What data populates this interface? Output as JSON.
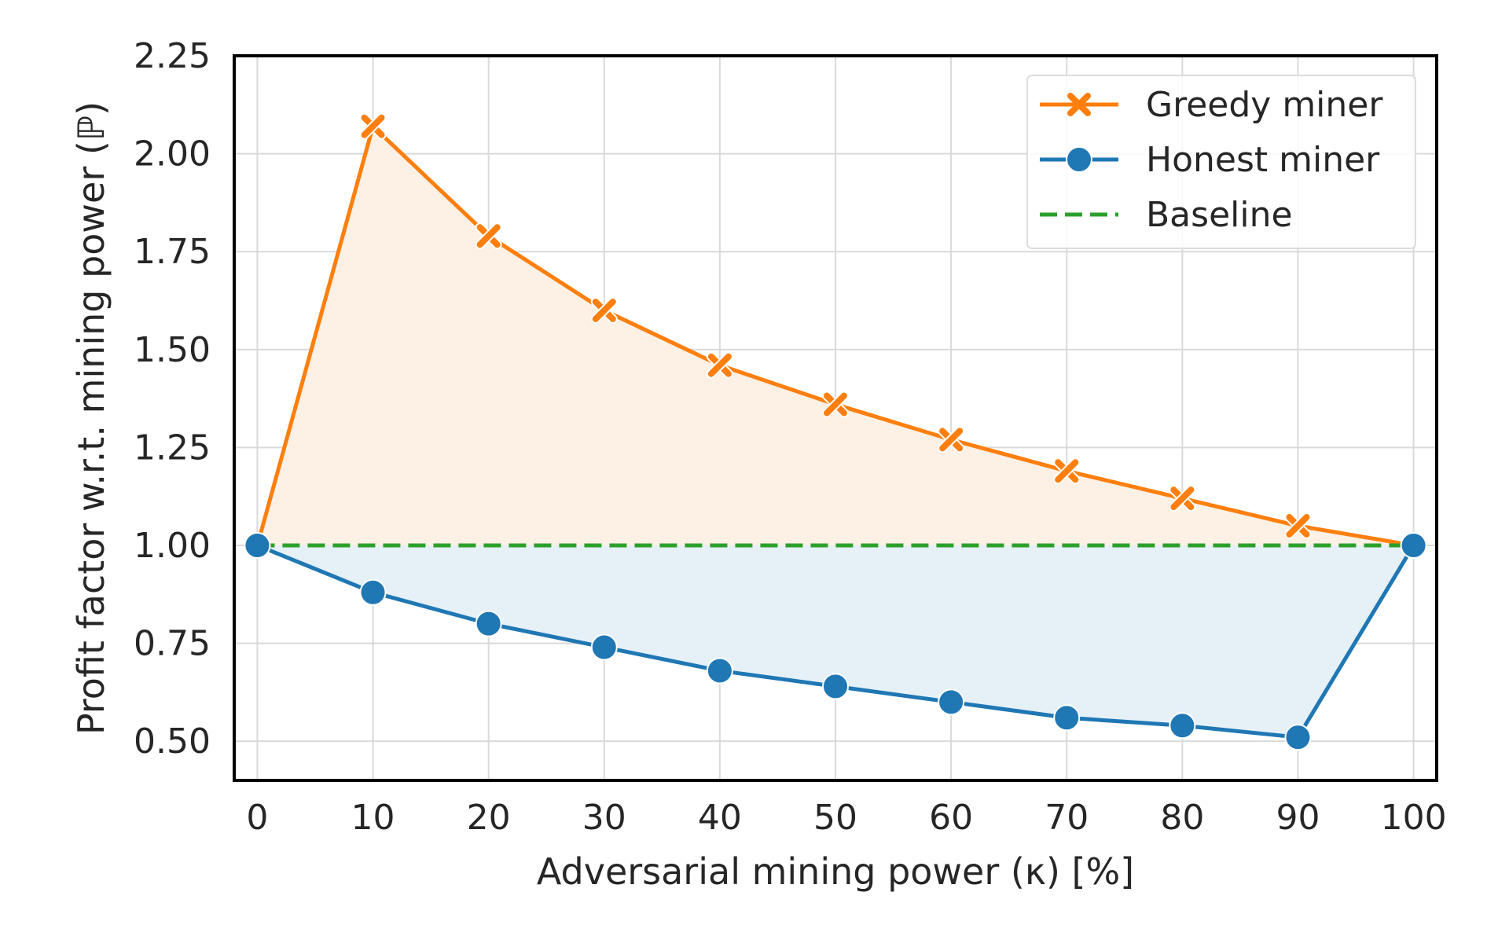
{
  "chart_data": {
    "type": "line",
    "title": "",
    "xlabel": "Adversarial mining power (κ) [%]",
    "ylabel": "Profit factor w.r.t. mining power (ℙ)",
    "xlim": [
      -2,
      102
    ],
    "ylim": [
      0.4,
      2.25
    ],
    "grid": true,
    "legend_placement": "top-right",
    "x": [
      0,
      10,
      20,
      30,
      40,
      50,
      60,
      70,
      80,
      90,
      100
    ],
    "xticks": [
      "0",
      "10",
      "20",
      "30",
      "40",
      "50",
      "60",
      "70",
      "80",
      "90",
      "100"
    ],
    "yticks": [
      "0.50",
      "0.75",
      "1.00",
      "1.25",
      "1.50",
      "1.75",
      "2.00",
      "2.25"
    ],
    "series": [
      {
        "name": "Greedy miner",
        "marker": "x",
        "color": "#ff7f0e",
        "fill": "#fdf0e4",
        "values": [
          1.0,
          2.07,
          1.79,
          1.6,
          1.46,
          1.36,
          1.27,
          1.19,
          1.12,
          1.05,
          1.0
        ]
      },
      {
        "name": "Honest miner",
        "marker": "circle",
        "color": "#1f77b4",
        "fill": "#e6f0f7",
        "values": [
          1.0,
          0.88,
          0.8,
          0.74,
          0.68,
          0.64,
          0.6,
          0.56,
          0.54,
          0.51,
          1.0
        ]
      },
      {
        "name": "Baseline",
        "marker": "none",
        "style": "dashed",
        "color": "#2ca02c",
        "values": [
          1.0,
          1.0,
          1.0,
          1.0,
          1.0,
          1.0,
          1.0,
          1.0,
          1.0,
          1.0,
          1.0
        ]
      }
    ]
  }
}
